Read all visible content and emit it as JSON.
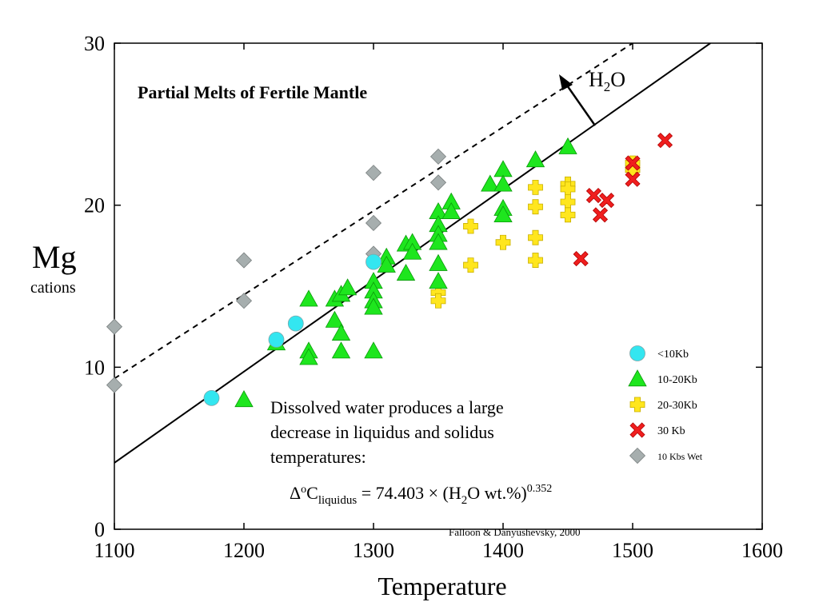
{
  "chart_data": {
    "type": "scatter",
    "title": "Partial Melts of Fertile Mantle",
    "xlabel": "Temperature",
    "ylabel": "Mg",
    "ylabel_sub": "cations",
    "xlim": [
      1100,
      1600
    ],
    "ylim": [
      0,
      30
    ],
    "x_ticks": [
      "1100",
      "1200",
      "1300",
      "1400",
      "1500",
      "1600"
    ],
    "y_ticks": [
      "0",
      "10",
      "20",
      "30"
    ],
    "grid": false,
    "legend_position": "right",
    "series": [
      {
        "name": "<10Kb",
        "marker": "circle",
        "color": "#33e6f0",
        "points": [
          [
            1175,
            8.1
          ],
          [
            1225,
            11.7
          ],
          [
            1240,
            12.7
          ],
          [
            1300,
            16.5
          ]
        ]
      },
      {
        "name": "10-20Kb",
        "marker": "triangle",
        "color": "#1ee61e",
        "points": [
          [
            1200,
            8.0
          ],
          [
            1225,
            11.5
          ],
          [
            1250,
            14.2
          ],
          [
            1250,
            11.0
          ],
          [
            1250,
            10.6
          ],
          [
            1270,
            14.2
          ],
          [
            1270,
            12.9
          ],
          [
            1275,
            14.5
          ],
          [
            1275,
            12.1
          ],
          [
            1275,
            11.0
          ],
          [
            1280,
            14.9
          ],
          [
            1300,
            15.3
          ],
          [
            1300,
            14.7
          ],
          [
            1300,
            14.1
          ],
          [
            1300,
            13.7
          ],
          [
            1300,
            11.0
          ],
          [
            1310,
            16.8
          ],
          [
            1310,
            16.3
          ],
          [
            1325,
            17.6
          ],
          [
            1325,
            15.8
          ],
          [
            1330,
            17.7
          ],
          [
            1330,
            17.1
          ],
          [
            1350,
            19.6
          ],
          [
            1350,
            18.8
          ],
          [
            1350,
            18.2
          ],
          [
            1350,
            17.7
          ],
          [
            1350,
            16.4
          ],
          [
            1350,
            15.3
          ],
          [
            1360,
            20.2
          ],
          [
            1360,
            19.6
          ],
          [
            1390,
            21.3
          ],
          [
            1400,
            22.2
          ],
          [
            1400,
            21.3
          ],
          [
            1400,
            19.8
          ],
          [
            1400,
            19.4
          ],
          [
            1425,
            22.8
          ],
          [
            1450,
            23.6
          ]
        ]
      },
      {
        "name": "20-30Kb",
        "marker": "plus",
        "color": "#ffe61e",
        "points": [
          [
            1350,
            14.6
          ],
          [
            1350,
            14.1
          ],
          [
            1375,
            18.7
          ],
          [
            1375,
            16.3
          ],
          [
            1400,
            17.7
          ],
          [
            1425,
            21.1
          ],
          [
            1425,
            19.9
          ],
          [
            1425,
            18.0
          ],
          [
            1425,
            16.6
          ],
          [
            1450,
            21.3
          ],
          [
            1450,
            21.0
          ],
          [
            1450,
            20.2
          ],
          [
            1450,
            19.4
          ],
          [
            1500,
            22.6
          ],
          [
            1500,
            22.2
          ]
        ]
      },
      {
        "name": "30 Kb",
        "marker": "x",
        "color": "#f01e1e",
        "points": [
          [
            1460,
            16.7
          ],
          [
            1470,
            20.6
          ],
          [
            1475,
            19.4
          ],
          [
            1480,
            20.3
          ],
          [
            1500,
            22.6
          ],
          [
            1500,
            21.6
          ],
          [
            1525,
            24.0
          ]
        ]
      },
      {
        "name": "10 Kbs Wet",
        "marker": "diamond",
        "color": "#a6aeae",
        "points": [
          [
            1100,
            12.5
          ],
          [
            1100,
            8.9
          ],
          [
            1200,
            16.6
          ],
          [
            1200,
            14.1
          ],
          [
            1300,
            22.0
          ],
          [
            1300,
            18.9
          ],
          [
            1300,
            17.0
          ],
          [
            1350,
            23.0
          ],
          [
            1350,
            21.4
          ]
        ]
      }
    ],
    "lines": [
      {
        "style": "solid",
        "from": [
          1100,
          4.1
        ],
        "to": [
          1560,
          30
        ]
      },
      {
        "style": "dashed",
        "from": [
          1100,
          9.3
        ],
        "to": [
          1500,
          30
        ]
      }
    ],
    "annotations": {
      "arrow_label_main": "H",
      "arrow_label_sub": "2",
      "arrow_label_end": "O",
      "note_lines": [
        "Dissolved water produces a large",
        "decrease in liquidus and solidus",
        "temperatures:"
      ],
      "eq_a": "Δ",
      "eq_b": "o",
      "eq_c": "C",
      "eq_d": "liquidus",
      "eq_e": " = 74.403 × (H",
      "eq_f": "2",
      "eq_g": "O wt.%)",
      "eq_h": "0.352",
      "credit": "Falloon & Danyushevsky, 2000"
    }
  }
}
